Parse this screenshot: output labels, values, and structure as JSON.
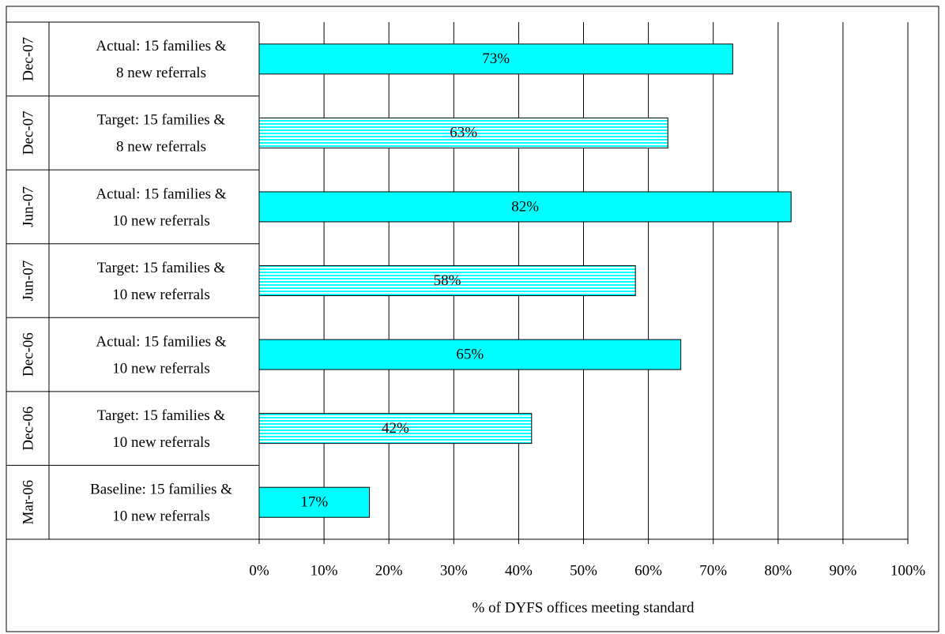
{
  "chart_data": {
    "type": "hbar",
    "xlabel": "% of DYFS offices meeting standard",
    "groups": [
      "Dec-07",
      "Dec-07",
      "Jun-07",
      "Jun-07",
      "Dec-06",
      "Dec-06",
      "Mar-06"
    ],
    "categories": [
      [
        "Actual: 15 families &",
        "8 new referrals"
      ],
      [
        "Target: 15 families &",
        "8 new referrals"
      ],
      [
        "Actual: 15 families &",
        "10 new referrals"
      ],
      [
        "Target: 15 families &",
        "10 new referrals"
      ],
      [
        "Actual: 15 families &",
        "10 new referrals"
      ],
      [
        "Target: 15 families &",
        "10 new referrals"
      ],
      [
        "Baseline: 15 families &",
        "10 new referrals"
      ]
    ],
    "values": [
      73,
      63,
      82,
      58,
      65,
      42,
      17
    ],
    "value_labels": [
      "73%",
      "63%",
      "82%",
      "58%",
      "65%",
      "42%",
      "17%"
    ],
    "bar_styles": [
      "solid",
      "striped",
      "solid",
      "striped",
      "solid",
      "striped",
      "solid"
    ],
    "color": "#00ffff",
    "xlim": [
      0,
      100
    ],
    "xticks": [
      {
        "value": 0,
        "label": "0%"
      },
      {
        "value": 10,
        "label": "10%"
      },
      {
        "value": 20,
        "label": "20%"
      },
      {
        "value": 30,
        "label": "30%"
      },
      {
        "value": 40,
        "label": "40%"
      },
      {
        "value": 50,
        "label": "50%"
      },
      {
        "value": 60,
        "label": "60%"
      },
      {
        "value": 70,
        "label": "70%"
      },
      {
        "value": 80,
        "label": "80%"
      },
      {
        "value": 90,
        "label": "90%"
      },
      {
        "value": 100,
        "label": "100%"
      }
    ],
    "grid": true
  }
}
